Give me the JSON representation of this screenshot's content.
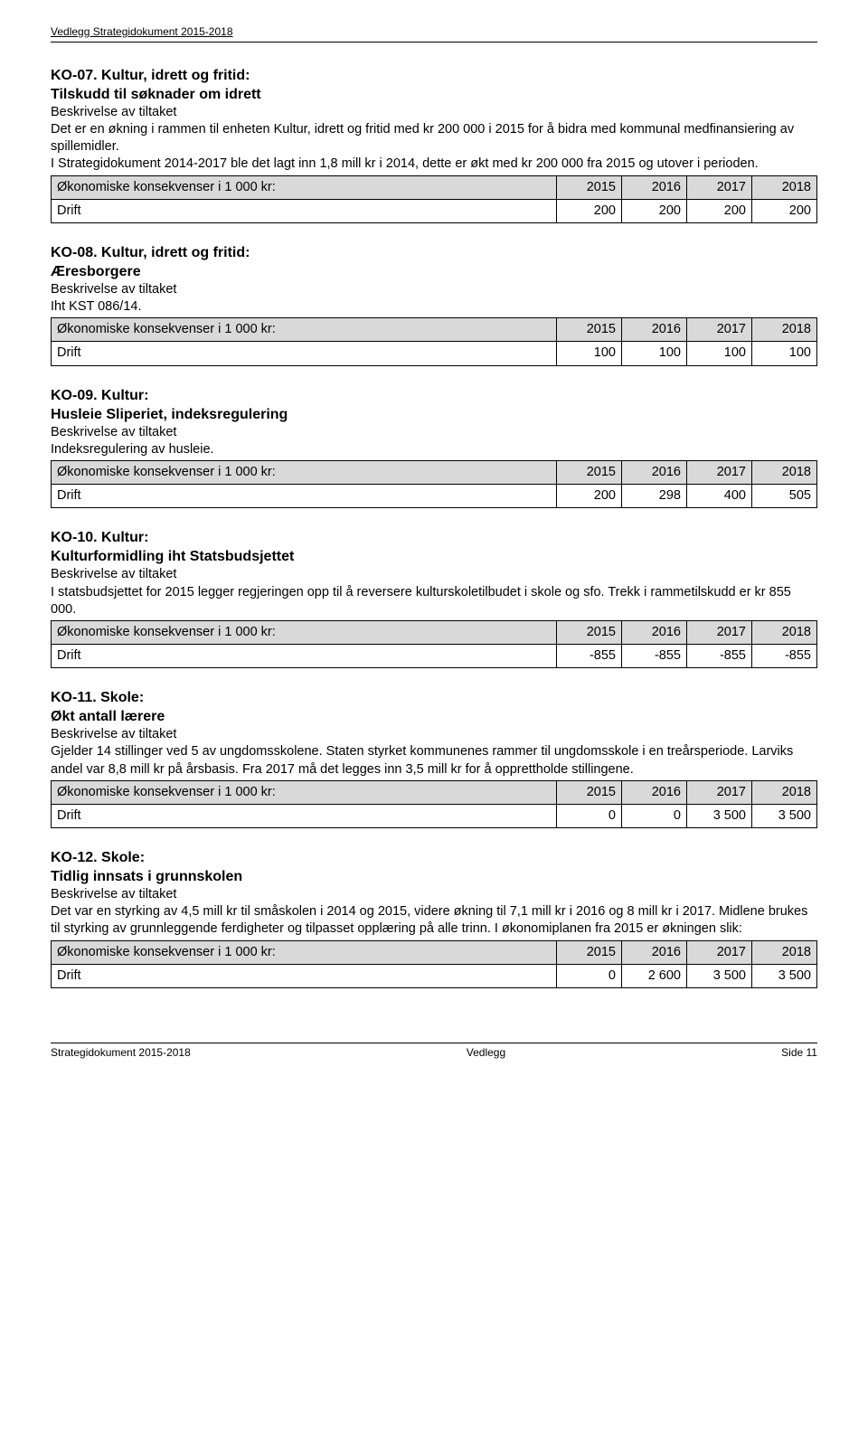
{
  "header": {
    "text": "Vedlegg Strategidokument 2015-2018"
  },
  "econ_header": {
    "label": "Økonomiske konsekvenser i 1 000 kr:",
    "years": [
      "2015",
      "2016",
      "2017",
      "2018"
    ],
    "row_label": "Drift",
    "header_bg": "#d9d9d9",
    "border_color": "#000000"
  },
  "sections": [
    {
      "code": "KO-07. Kultur, idrett og fritid:",
      "title": "Tilskudd til søknader om idrett",
      "beskr": "Beskrivelse av tiltaket",
      "body": "Det er en økning i rammen til enheten Kultur, idrett og fritid med kr 200 000 i 2015 for å bidra med kommunal medfinansiering av spillemidler.\nI Strategidokument 2014-2017 ble det lagt inn 1,8 mill kr i 2014, dette er økt med kr 200 000 fra 2015 og utover i perioden.",
      "values": [
        "200",
        "200",
        "200",
        "200"
      ]
    },
    {
      "code": "KO-08. Kultur, idrett og fritid:",
      "title": "Æresborgere",
      "beskr": "Beskrivelse av tiltaket",
      "body": "Iht KST 086/14.",
      "values": [
        "100",
        "100",
        "100",
        "100"
      ]
    },
    {
      "code": "KO-09. Kultur:",
      "title": "Husleie Sliperiet, indeksregulering",
      "beskr": "Beskrivelse av tiltaket",
      "body": "Indeksregulering av husleie.",
      "values": [
        "200",
        "298",
        "400",
        "505"
      ]
    },
    {
      "code": "KO-10. Kultur:",
      "title": "Kulturformidling iht Statsbudsjettet",
      "beskr": "Beskrivelse av tiltaket",
      "body": "I statsbudsjettet for 2015 legger regjeringen opp til å reversere kulturskoletilbudet i skole og sfo. Trekk i rammetilskudd er kr 855 000.",
      "values": [
        "-855",
        "-855",
        "-855",
        "-855"
      ]
    },
    {
      "code": "KO-11. Skole:",
      "title": "Økt antall lærere",
      "beskr": "Beskrivelse av tiltaket",
      "body": "Gjelder 14 stillinger ved 5 av ungdomsskolene. Staten styrket kommunenes rammer til ungdomsskole i en treårsperiode. Larviks andel var 8,8 mill kr på årsbasis. Fra 2017 må det legges inn 3,5 mill kr for å opprettholde stillingene.",
      "values": [
        "0",
        "0",
        "3 500",
        "3 500"
      ]
    },
    {
      "code": "KO-12. Skole:",
      "title": "Tidlig innsats i grunnskolen",
      "beskr": "Beskrivelse av tiltaket",
      "body": "Det var en styrking av 4,5 mill kr til småskolen i 2014 og 2015, videre økning til 7,1 mill kr i 2016 og 8 mill kr i 2017. Midlene brukes til styrking av grunnleggende ferdigheter og tilpasset opplæring på alle trinn. I økonomiplanen fra 2015 er økningen slik:",
      "values": [
        "0",
        "2 600",
        "3 500",
        "3 500"
      ]
    }
  ],
  "footer": {
    "left": "Strategidokument 2015-2018",
    "center": "Vedlegg",
    "right": "Side 11"
  }
}
